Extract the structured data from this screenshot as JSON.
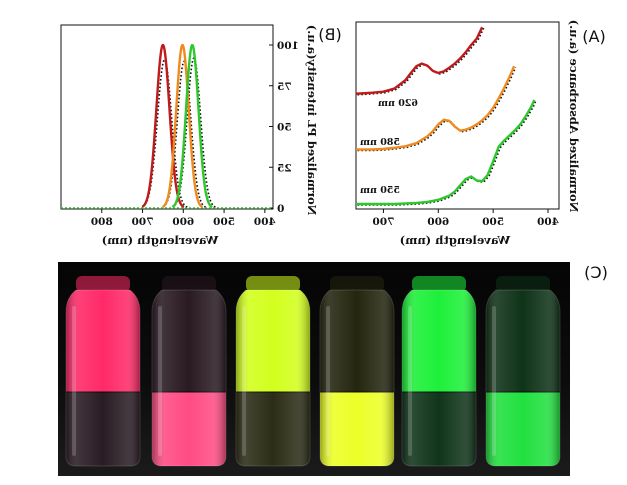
{
  "panels": {
    "A": {
      "tag": "(A)"
    },
    "B": {
      "tag": "(B)"
    },
    "C": {
      "tag": "(C)"
    }
  },
  "colors": {
    "red": "#c01a1a",
    "orange": "#f08a1e",
    "green": "#2cc82c",
    "fit": "#111111"
  },
  "chart_data": [
    {
      "panel": "A",
      "type": "line",
      "xlabel": "Wavelength (nm)",
      "ylabel": "Normalized Absorbance (a.u.)",
      "xlim": [
        750,
        380
      ],
      "x_reversed": true,
      "yticks_shown": false,
      "xticks": [
        700,
        600,
        500,
        400
      ],
      "grid": false,
      "series": [
        {
          "name": "620 nm",
          "color": "#c01a1a",
          "offset": 2.1,
          "x": [
            750,
            720,
            700,
            680,
            660,
            650,
            640,
            630,
            620,
            610,
            600,
            590,
            580,
            570,
            560,
            550,
            540,
            530,
            520,
            515,
            512
          ],
          "y": [
            0.02,
            0.04,
            0.06,
            0.12,
            0.28,
            0.42,
            0.55,
            0.6,
            0.56,
            0.46,
            0.42,
            0.45,
            0.52,
            0.6,
            0.7,
            0.82,
            0.96,
            1.08,
            1.3,
            1.45,
            1.55
          ]
        },
        {
          "name": "580 nm",
          "color": "#f08a1e",
          "offset": 1.05,
          "x": [
            750,
            720,
            700,
            680,
            660,
            640,
            620,
            610,
            600,
            590,
            580,
            570,
            560,
            550,
            540,
            530,
            520,
            510,
            500,
            490,
            480,
            470,
            465,
            462
          ],
          "y": [
            0.0,
            0.0,
            0.01,
            0.03,
            0.06,
            0.12,
            0.25,
            0.35,
            0.48,
            0.57,
            0.55,
            0.44,
            0.36,
            0.38,
            0.42,
            0.48,
            0.56,
            0.66,
            0.8,
            0.98,
            1.18,
            1.4,
            1.52,
            1.6
          ]
        },
        {
          "name": "550 nm",
          "color": "#2cc82c",
          "offset": 0.0,
          "x": [
            750,
            720,
            700,
            680,
            660,
            640,
            620,
            600,
            580,
            570,
            560,
            550,
            540,
            530,
            520,
            510,
            500,
            490,
            480,
            470,
            460,
            450,
            440,
            430,
            425
          ],
          "y": [
            0.0,
            0.0,
            0.0,
            0.0,
            0.01,
            0.02,
            0.04,
            0.08,
            0.16,
            0.24,
            0.36,
            0.48,
            0.53,
            0.45,
            0.44,
            0.56,
            0.82,
            1.1,
            1.22,
            1.32,
            1.42,
            1.54,
            1.7,
            1.88,
            2.0
          ]
        }
      ]
    },
    {
      "panel": "B",
      "type": "line",
      "xlabel": "Waverlength (nm)",
      "ylabel": "Normalized PL intensity(a.u.)",
      "xlim": [
        900,
        380
      ],
      "x_reversed": true,
      "ylim": [
        0,
        100
      ],
      "xticks": [
        800,
        700,
        600,
        500,
        400
      ],
      "yticks": [
        0,
        25,
        50,
        75,
        100
      ],
      "ytick_labels": [
        "0",
        "25",
        "50",
        "75",
        "100"
      ],
      "grid": false,
      "series": [
        {
          "color": "#c01a1a",
          "peak": 650,
          "fwhm": 38,
          "fit_height": 91
        },
        {
          "color": "#f08a1e",
          "peak": 602,
          "fwhm": 36,
          "fit_height": 90
        },
        {
          "color": "#2cc82c",
          "peak": 578,
          "fwhm": 36,
          "fit_height": 92
        }
      ]
    }
  ],
  "photo": {
    "vials": [
      {
        "top_phase": "#ff2a68",
        "bottom_phase": "#2a1c24"
      },
      {
        "top_phase": "#2a1a22",
        "bottom_phase": "#ff4c84"
      },
      {
        "top_phase": "#d2ff1e",
        "bottom_phase": "#2c2d16"
      },
      {
        "top_phase": "#24260f",
        "bottom_phase": "#ecff28"
      },
      {
        "top_phase": "#1ef03a",
        "bottom_phase": "#10351a"
      },
      {
        "top_phase": "#0f3318",
        "bottom_phase": "#22e040"
      }
    ]
  }
}
